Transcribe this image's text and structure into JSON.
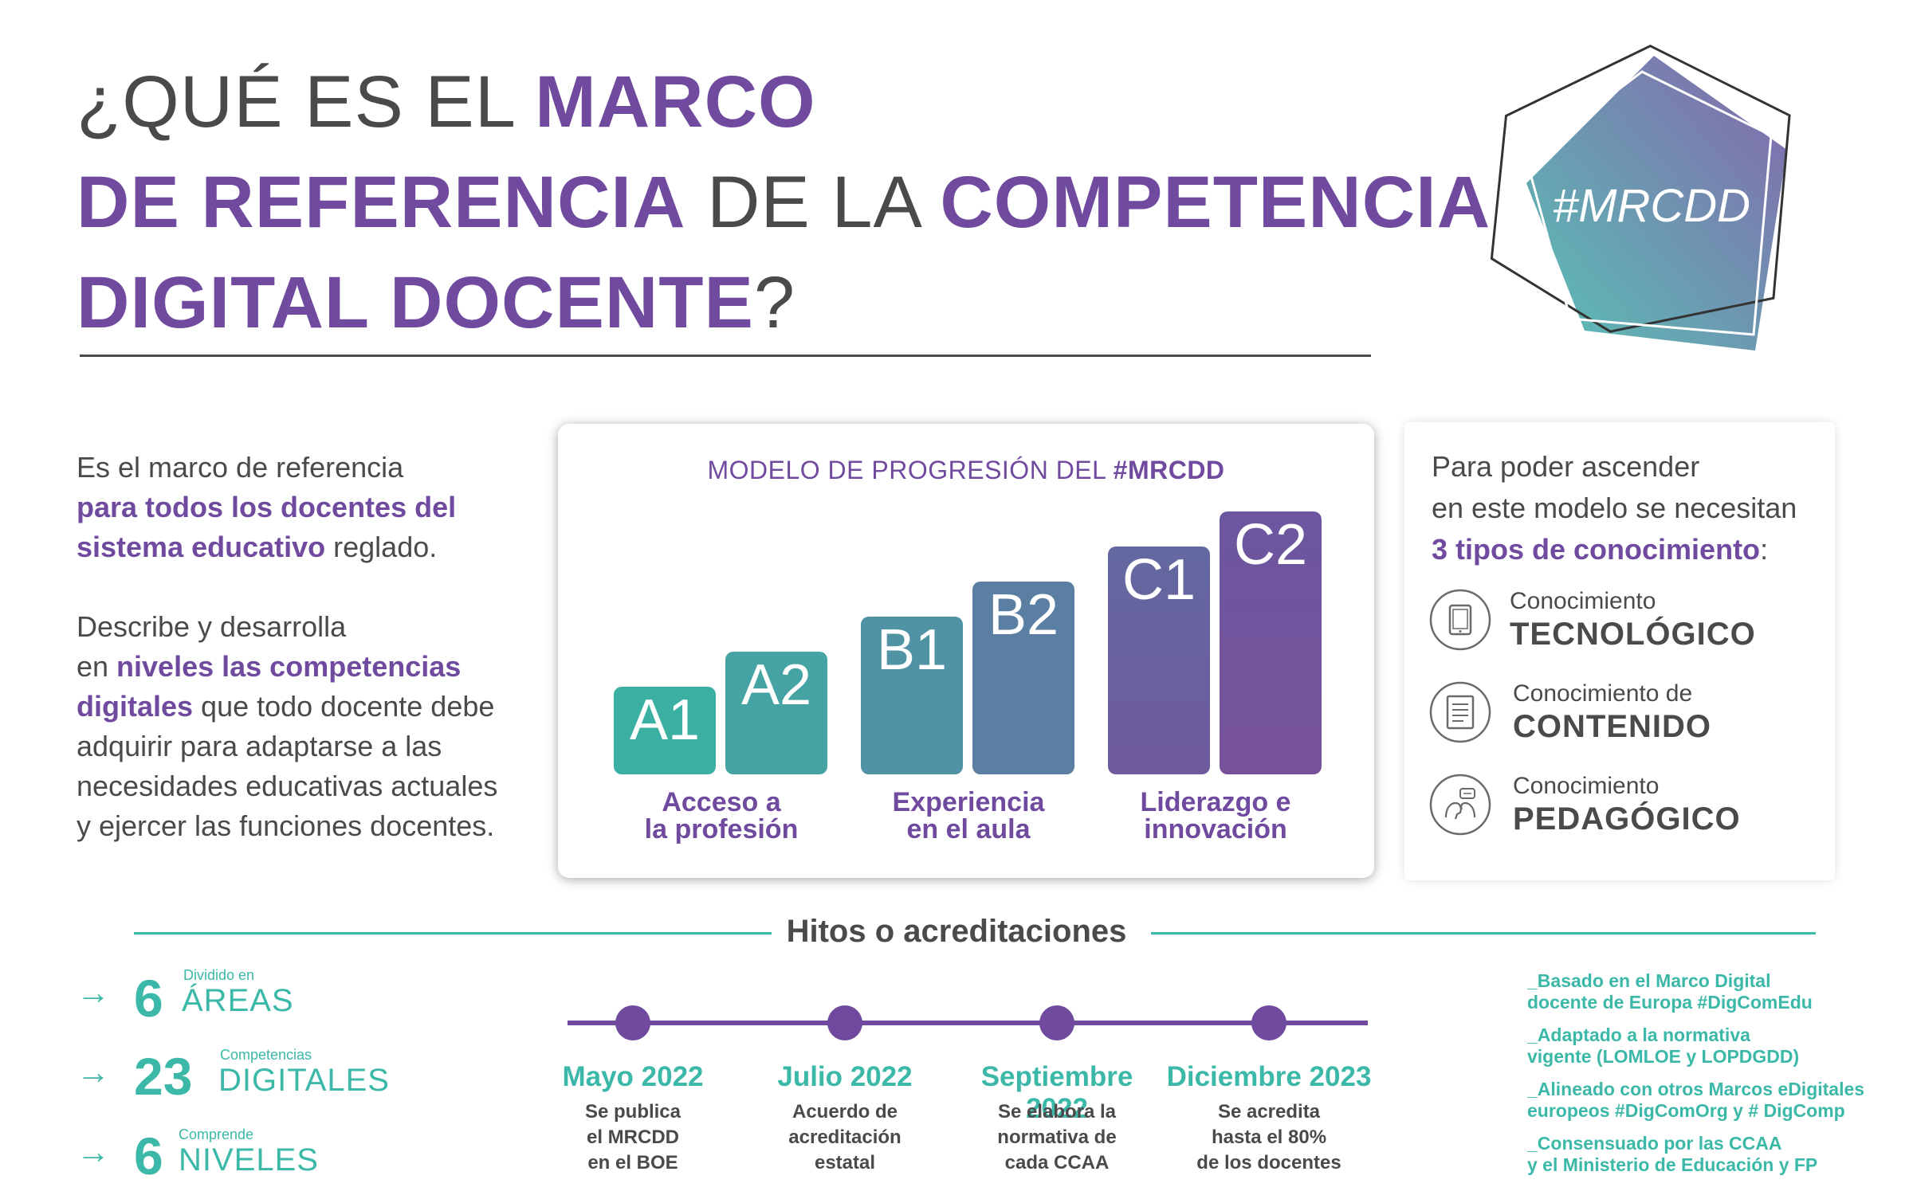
{
  "title": {
    "line1_a": "¿QUÉ ES EL ",
    "line1_b": "MARCO",
    "line2_a": "DE REFERENCIA",
    "line2_b": " DE LA ",
    "line2_c": "COMPETENCIA",
    "line3_a": "DIGITAL DOCENTE",
    "line3_b": "?"
  },
  "logo": {
    "text": "#MRCDD"
  },
  "intro": {
    "p1_a": "Es el marco de referencia",
    "p1_b": "para todos los docentes del",
    "p1_c": "sistema educativo",
    "p1_d": " reglado.",
    "p2_a": "Describe y desarrolla",
    "p2_b": "en ",
    "p2_c": "niveles las competencias",
    "p2_d": "digitales",
    "p2_e": " que todo docente debe",
    "p2_f": "adquirir para adaptarse a las",
    "p2_g": "necesidades educativas actuales",
    "p2_h": "y ejercer las funciones docentes."
  },
  "progression": {
    "title_a": "MODELO DE PROGRESIÓN DEL ",
    "title_b": "#MRCDD",
    "levels": [
      "A1",
      "A2",
      "B1",
      "B2",
      "C1",
      "C2"
    ],
    "groups": [
      {
        "line1": "Acceso a",
        "line2": "la profesión"
      },
      {
        "line1": "Experiencia",
        "line2": "en el aula"
      },
      {
        "line1": "Liderazgo e",
        "line2": "innovación"
      }
    ]
  },
  "knowledge": {
    "intro_a": "Para poder ascender",
    "intro_b": "en este modelo se necesitan",
    "intro_c": "3 tipos de conocimiento",
    "intro_d": ":",
    "items": [
      {
        "small": "Conocimiento",
        "big": "TECNOLÓGICO",
        "icon": "tablet-icon"
      },
      {
        "small": "Conocimiento de",
        "big": "CONTENIDO",
        "icon": "document-icon"
      },
      {
        "small": "Conocimiento",
        "big": "PEDAGÓGICO",
        "icon": "dialogue-icon"
      }
    ]
  },
  "milestones": {
    "title": "Hitos o acreditaciones",
    "items": [
      {
        "date": "Mayo 2022",
        "l1": "Se publica",
        "l2": "el MRCDD",
        "l3": "en el BOE"
      },
      {
        "date": "Julio 2022",
        "l1": "Acuerdo de",
        "l2": "acreditación",
        "l3": "estatal"
      },
      {
        "date": "Septiembre 2022",
        "l1": "Se elabora la",
        "l2": "normativa de",
        "l3": "cada CCAA"
      },
      {
        "date": "Diciembre 2023",
        "l1": "Se acredita",
        "l2": "hasta el 80%",
        "l3": "de los docentes"
      }
    ]
  },
  "stats": [
    {
      "arrow": "→",
      "number": "6",
      "small": "Dividido en",
      "big": "ÁREAS"
    },
    {
      "arrow": "→",
      "number": "23",
      "small": "Competencias",
      "big": "DIGITALES"
    },
    {
      "arrow": "→",
      "number": "6",
      "small": "Comprende",
      "big": "NIVELES"
    }
  ],
  "notes": [
    {
      "l1": "_Basado en el Marco Digital",
      "l2": "docente de Europa #DigComEdu"
    },
    {
      "l1": "_Adaptado a la normativa",
      "l2": "vigente (LOMLOE y LOPDGDD)"
    },
    {
      "l1": "_Alineado con otros Marcos eDigitales",
      "l2": "europeos #DigComOrg y # DigComp"
    },
    {
      "l1": "_Consensuado por las CCAA",
      "l2": "y el Ministerio de Educación y FP"
    }
  ],
  "colors": {
    "purple": "#6f4a9e",
    "teal": "#3bb8a8",
    "text": "#4a4a4a"
  }
}
